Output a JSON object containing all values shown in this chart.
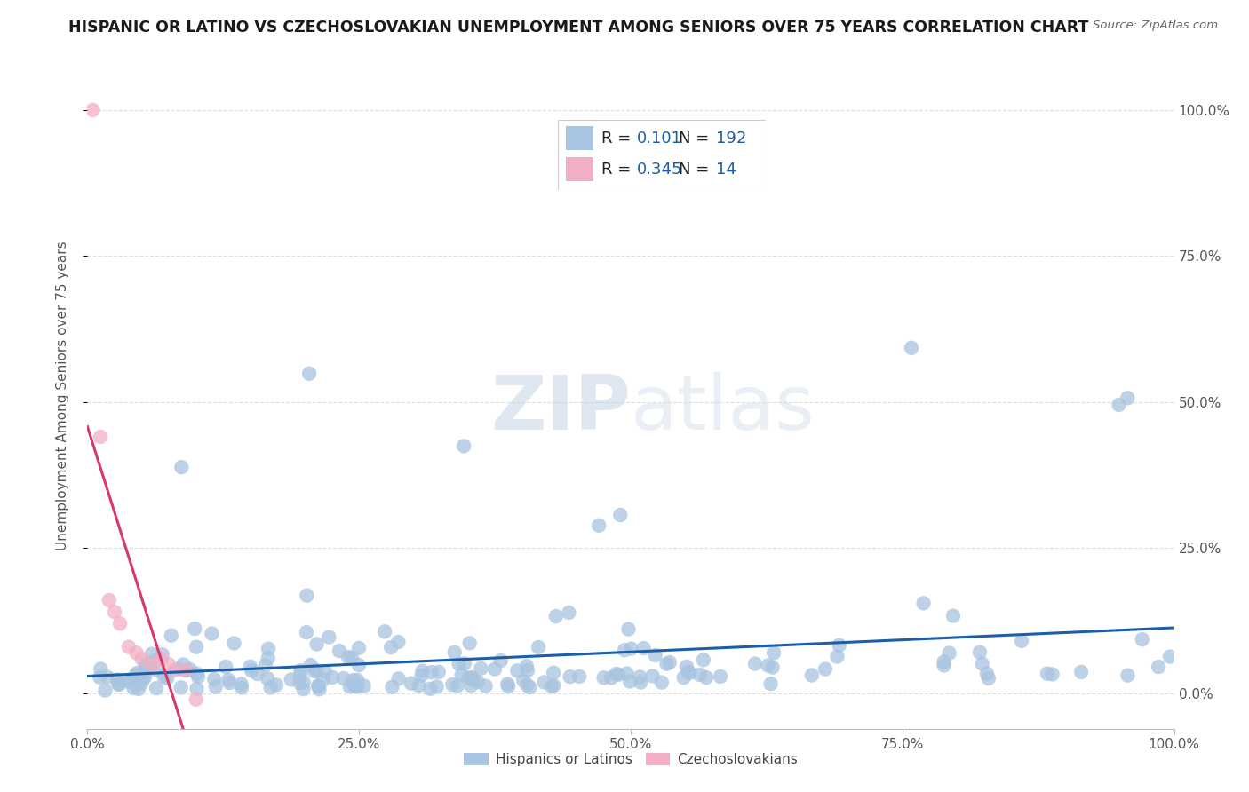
{
  "title": "HISPANIC OR LATINO VS CZECHOSLOVAKIAN UNEMPLOYMENT AMONG SENIORS OVER 75 YEARS CORRELATION CHART",
  "source": "Source: ZipAtlas.com",
  "ylabel": "Unemployment Among Seniors over 75 years",
  "xlim": [
    0.0,
    1.0
  ],
  "ylim": [
    -0.06,
    1.08
  ],
  "x_tick_labels": [
    "0.0%",
    "25.0%",
    "50.0%",
    "75.0%",
    "100.0%"
  ],
  "y_tick_labels": [
    "0.0%",
    "25.0%",
    "50.0%",
    "75.0%",
    "100.0%"
  ],
  "blue_R": "0.101",
  "blue_N": "192",
  "pink_R": "0.345",
  "pink_N": "14",
  "blue_color": "#a8c4e0",
  "pink_color": "#f2afc4",
  "blue_line_color": "#1a5fa8",
  "pink_line_color": "#d43a6a",
  "legend_label_blue": "Hispanics or Latinos",
  "legend_label_pink": "Czechoslovakians",
  "grid_color": "#dddddd",
  "text_color": "#333333",
  "source_color": "#666666",
  "watermark_color": "#d0dde8",
  "title_fontsize": 12.5,
  "axis_fontsize": 11,
  "legend_fontsize": 13
}
